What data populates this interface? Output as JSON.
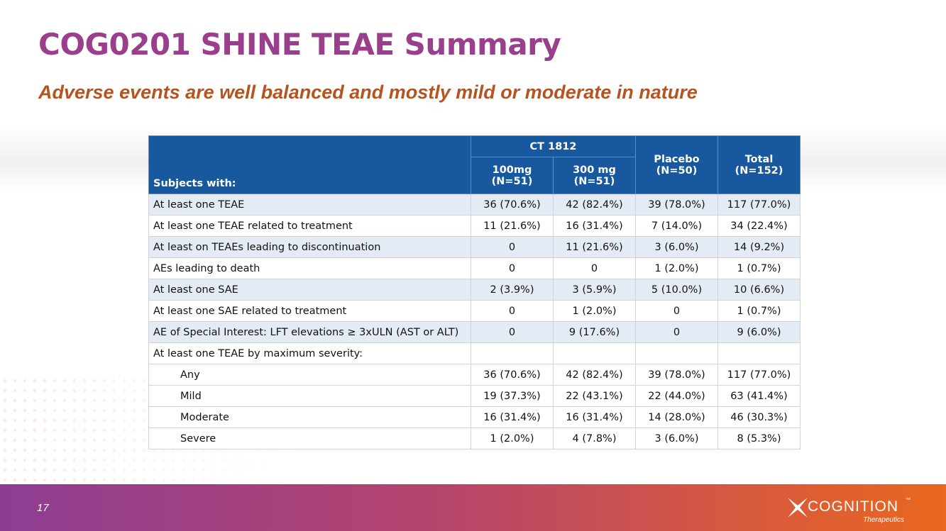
{
  "slide": {
    "title": "COG0201 SHINE TEAE Summary",
    "subtitle": "Adverse events are well balanced and mostly mild or moderate in nature",
    "page_number": "17"
  },
  "table": {
    "row_header": "Subjects with:",
    "group_header": "CT 1812",
    "columns": [
      {
        "name": "100mg",
        "n": "(N=51)"
      },
      {
        "name": "300 mg",
        "n": "(N=51)"
      },
      {
        "name": "Placebo",
        "n": "(N=50)"
      },
      {
        "name": "Total",
        "n": "(N=152)"
      }
    ],
    "rows": [
      {
        "label": "At least one TEAE",
        "values": [
          "36 (70.6%)",
          "42 (82.4%)",
          "39 (78.0%)",
          "117 (77.0%)"
        ]
      },
      {
        "label": "At least one TEAE related to treatment",
        "values": [
          "11 (21.6%)",
          "16 (31.4%)",
          "7 (14.0%)",
          "34 (22.4%)"
        ]
      },
      {
        "label": "At least on TEAEs leading to discontinuation",
        "values": [
          "0",
          "11 (21.6%)",
          "3 (6.0%)",
          "14 (9.2%)"
        ]
      },
      {
        "label": "AEs leading to death",
        "values": [
          "0",
          "0",
          "1 (2.0%)",
          "1 (0.7%)"
        ]
      },
      {
        "label": "At least one SAE",
        "values": [
          "2 (3.9%)",
          "3 (5.9%)",
          "5 (10.0%)",
          "10 (6.6%)"
        ]
      },
      {
        "label": "At least one SAE related to treatment",
        "values": [
          "0",
          "1 (2.0%)",
          "0",
          "1 (0.7%)"
        ]
      },
      {
        "label": "AE of Special Interest: LFT elevations ≥ 3xULN (AST or ALT)",
        "values": [
          "0",
          "9 (17.6%)",
          "0",
          "9 (6.0%)"
        ]
      },
      {
        "label": "At least one TEAE by  maximum severity:",
        "values": [
          "",
          "",
          "",
          ""
        ]
      },
      {
        "label": "Any",
        "values": [
          "36 (70.6%)",
          "42 (82.4%)",
          "39 (78.0%)",
          "117 (77.0%)"
        ]
      },
      {
        "label": "Mild",
        "values": [
          "19 (37.3%)",
          "22 (43.1%)",
          "22 (44.0%)",
          "63 (41.4%)"
        ]
      },
      {
        "label": "Moderate",
        "values": [
          "16 (31.4%)",
          "16 (31.4%)",
          "14 (28.0%)",
          "46 (30.3%)"
        ]
      },
      {
        "label": "Severe",
        "values": [
          "1 (2.0%)",
          "4 (7.8%)",
          "3 (6.0%)",
          "8 (5.3%)"
        ]
      }
    ]
  },
  "logo": {
    "name": "COGNITION",
    "trademark": "™",
    "tagline": "Therapeutics",
    "icon": "cognition-x-icon"
  },
  "colors": {
    "title": "#9a3f8c",
    "subtitle": "#b6531e",
    "table_header": "#18589e",
    "row_alt": "#e4ebf4",
    "footer_start": "#8e3d93",
    "footer_end": "#e9671e"
  }
}
